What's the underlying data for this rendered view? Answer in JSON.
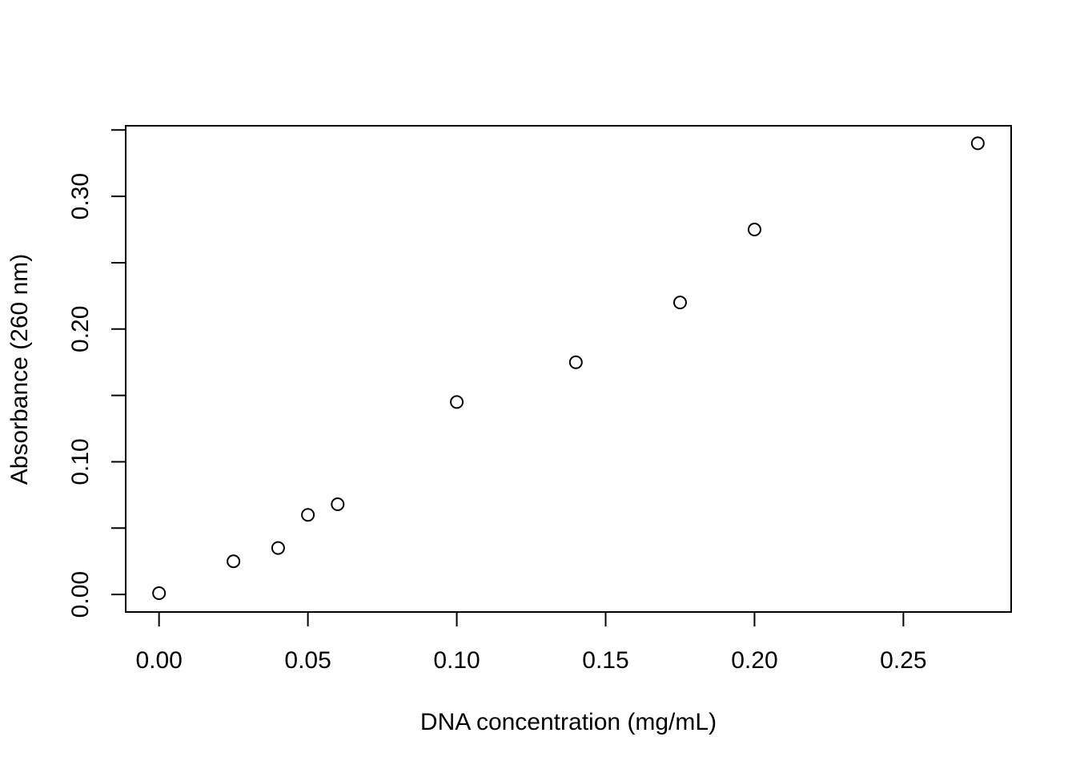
{
  "chart_data": {
    "type": "scatter",
    "title": "",
    "xlabel": "DNA concentration (mg/mL)",
    "ylabel": "Absorbance (260 nm)",
    "xlim": [
      -0.0112,
      0.2862
    ],
    "ylim": [
      -0.0132,
      0.3532
    ],
    "x_ticks": [
      0.0,
      0.05,
      0.1,
      0.15,
      0.2,
      0.25
    ],
    "x_tick_labels": [
      "0.00",
      "0.05",
      "0.10",
      "0.15",
      "0.20",
      "0.25"
    ],
    "y_ticks": [
      0.0,
      0.05,
      0.1,
      0.15,
      0.2,
      0.25,
      0.3,
      0.35
    ],
    "y_tick_labels": [
      "0.00",
      "",
      "0.10",
      "",
      "0.20",
      "",
      "0.30",
      ""
    ],
    "grid": false,
    "legend": "none",
    "marker": "open-circle",
    "color": "#000000",
    "points": [
      {
        "x": 0.0,
        "y": 0.001
      },
      {
        "x": 0.025,
        "y": 0.025
      },
      {
        "x": 0.04,
        "y": 0.035
      },
      {
        "x": 0.05,
        "y": 0.06
      },
      {
        "x": 0.06,
        "y": 0.068
      },
      {
        "x": 0.1,
        "y": 0.145
      },
      {
        "x": 0.14,
        "y": 0.175
      },
      {
        "x": 0.175,
        "y": 0.22
      },
      {
        "x": 0.2,
        "y": 0.275
      },
      {
        "x": 0.275,
        "y": 0.34
      }
    ]
  }
}
